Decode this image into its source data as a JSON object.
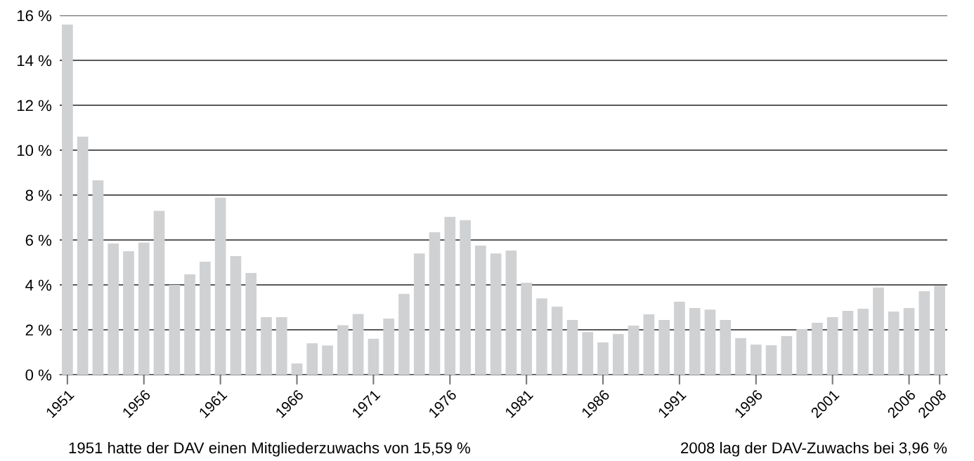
{
  "chart_data": {
    "type": "bar",
    "categories": [
      "1951",
      null,
      null,
      null,
      null,
      "1956",
      null,
      null,
      null,
      null,
      "1961",
      null,
      null,
      null,
      null,
      "1966",
      null,
      null,
      null,
      null,
      "1971",
      null,
      null,
      null,
      null,
      "1976",
      null,
      null,
      null,
      null,
      "1981",
      null,
      null,
      null,
      null,
      "1986",
      null,
      null,
      null,
      null,
      "1991",
      null,
      null,
      null,
      null,
      "1996",
      null,
      null,
      null,
      null,
      "2001",
      null,
      null,
      null,
      null,
      "2006",
      null,
      "2008"
    ],
    "values": [
      15.59,
      10.6,
      8.66,
      5.84,
      5.5,
      5.88,
      7.3,
      4.0,
      4.47,
      5.03,
      7.88,
      5.28,
      4.53,
      2.56,
      2.56,
      0.5,
      1.4,
      1.3,
      2.2,
      2.7,
      1.6,
      2.5,
      3.6,
      5.4,
      6.34,
      7.03,
      6.88,
      5.75,
      5.4,
      5.53,
      4.09,
      3.4,
      3.03,
      2.44,
      1.9,
      1.44,
      1.81,
      2.19,
      2.69,
      2.44,
      3.25,
      2.97,
      2.9,
      2.44,
      1.63,
      1.34,
      1.31,
      1.72,
      2.03,
      2.31,
      2.56,
      2.84,
      2.94,
      3.88,
      2.81,
      2.97,
      3.72,
      3.96
    ],
    "color": "#d0d1d3",
    "ylim": [
      0,
      16
    ],
    "yticks": [
      {
        "value": 0,
        "label": "0 %"
      },
      {
        "value": 2,
        "label": "2 %"
      },
      {
        "value": 4,
        "label": "4 %"
      },
      {
        "value": 6,
        "label": "6 %"
      },
      {
        "value": 8,
        "label": "8 %"
      },
      {
        "value": 10,
        "label": "10 %"
      },
      {
        "value": 12,
        "label": "12 %"
      },
      {
        "value": 14,
        "label": "14 %"
      },
      {
        "value": 16,
        "label": "16 %"
      }
    ],
    "grid": "y",
    "annotations": [
      "1951 hatte der DAV einen Mitgliederzuwachs von 15,59 %",
      "2008 lag der DAV-Zuwachs bei 3,96 %"
    ]
  }
}
